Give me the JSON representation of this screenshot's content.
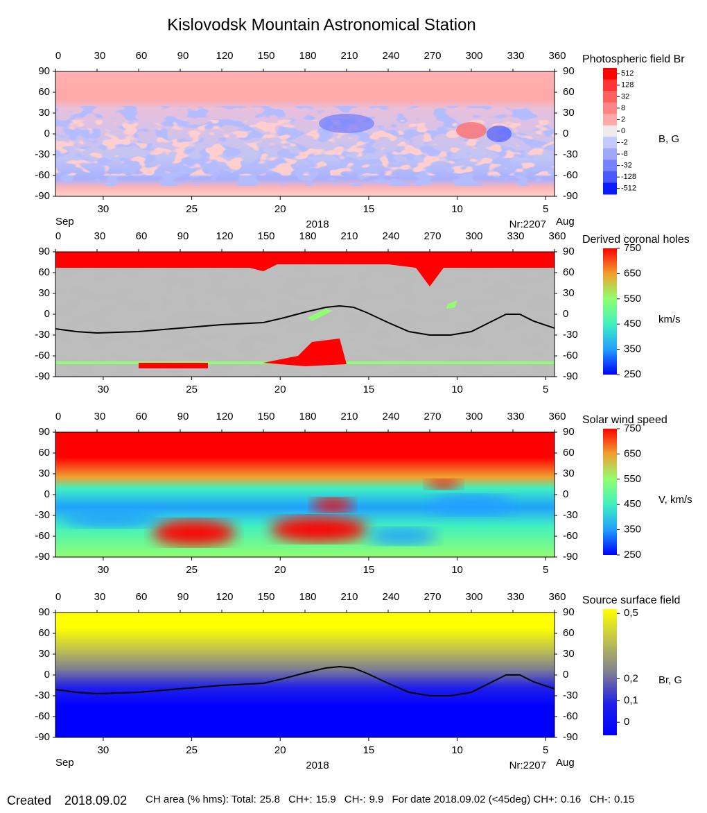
{
  "title": "Kislovodsk Mountain Astronomical Station",
  "chart_data": [
    {
      "type": "heatmap",
      "title": "Photospheric field Br",
      "unit_label": "B, G",
      "xlim": [
        0,
        360
      ],
      "xticks": [
        0,
        30,
        60,
        90,
        120,
        150,
        180,
        210,
        240,
        270,
        300,
        330,
        360
      ],
      "ylim": [
        -90,
        90
      ],
      "yticks": [
        90,
        60,
        30,
        0,
        -30,
        -60,
        -90
      ],
      "date_lim": [
        32.7,
        4.5
      ],
      "date_ticks": [
        30,
        25,
        20,
        15,
        10,
        5
      ],
      "month_left": "Sep",
      "month_right": "Aug",
      "year": "2018",
      "rotation": "Nr:2207",
      "colorbar": {
        "levels": [
          512,
          128,
          32,
          8,
          2,
          0,
          -2,
          -8,
          -32,
          -128,
          -512
        ],
        "colors": [
          "#ff0000",
          "#ff3535",
          "#ff6060",
          "#ff8585",
          "#ffaaaa",
          "#ececec",
          "#c4caff",
          "#9ea8ff",
          "#7682ff",
          "#4a58ff",
          "#0a1cff"
        ]
      }
    },
    {
      "type": "heatmap",
      "title": "Derived coronal holes",
      "unit_label": "km/s",
      "xlim": [
        0,
        360
      ],
      "xticks": [
        0,
        30,
        60,
        90,
        120,
        150,
        180,
        210,
        240,
        270,
        300,
        330,
        360
      ],
      "ylim": [
        -90,
        90
      ],
      "yticks": [
        90,
        60,
        30,
        0,
        -30,
        -60,
        -90
      ],
      "date_lim": [
        32.7,
        4.5
      ],
      "date_ticks": [
        30,
        25,
        20,
        15,
        10,
        5
      ],
      "neutral_line": {
        "lon": [
          0,
          15,
          30,
          60,
          90,
          120,
          150,
          165,
          180,
          195,
          205,
          215,
          225,
          240,
          255,
          270,
          285,
          300,
          315,
          325,
          335,
          345,
          360
        ],
        "lat": [
          -21,
          -25,
          -27,
          -25,
          -20,
          -15,
          -12,
          -5,
          3,
          10,
          12,
          10,
          2,
          -12,
          -25,
          -30,
          -30,
          -25,
          -10,
          0,
          0,
          -10,
          -20
        ]
      },
      "colorbar": {
        "clim": [
          250,
          750
        ],
        "ticks": [
          750,
          650,
          550,
          450,
          350,
          250
        ],
        "colormap": [
          "#0000ff",
          "#20a0ff",
          "#40f0c0",
          "#90ff70",
          "#f0a030",
          "#ff0000"
        ]
      }
    },
    {
      "type": "heatmap",
      "title": "Solar wind speed",
      "unit_label": "V, km/s",
      "xlim": [
        0,
        360
      ],
      "xticks": [
        0,
        30,
        60,
        90,
        120,
        150,
        180,
        210,
        240,
        270,
        300,
        330,
        360
      ],
      "ylim": [
        -90,
        90
      ],
      "yticks": [
        90,
        60,
        30,
        0,
        -30,
        -60,
        -90
      ],
      "date_lim": [
        32.7,
        4.5
      ],
      "date_ticks": [
        30,
        25,
        20,
        15,
        10,
        5
      ],
      "colorbar": {
        "clim": [
          250,
          750
        ],
        "ticks": [
          750,
          650,
          550,
          450,
          350,
          250
        ],
        "colormap": [
          "#0000ff",
          "#20a0ff",
          "#40f0c0",
          "#90ff70",
          "#f0a030",
          "#ff0000"
        ]
      }
    },
    {
      "type": "heatmap",
      "title": "Source surface field",
      "unit_label": "Br, G",
      "xlim": [
        0,
        360
      ],
      "xticks": [
        0,
        30,
        60,
        90,
        120,
        150,
        180,
        210,
        240,
        270,
        300,
        330,
        360
      ],
      "ylim": [
        -90,
        90
      ],
      "yticks": [
        90,
        60,
        30,
        0,
        -30,
        -60,
        -90
      ],
      "date_lim": [
        32.7,
        4.5
      ],
      "date_ticks": [
        30,
        25,
        20,
        15,
        10,
        5
      ],
      "month_left": "Sep",
      "month_right": "Aug",
      "year": "2018",
      "rotation": "Nr:2207",
      "neutral_line": {
        "lon": [
          0,
          15,
          30,
          60,
          90,
          120,
          150,
          165,
          180,
          195,
          205,
          215,
          225,
          240,
          255,
          270,
          285,
          300,
          315,
          325,
          335,
          345,
          360
        ],
        "lat": [
          -21,
          -25,
          -27,
          -25,
          -20,
          -15,
          -12,
          -5,
          3,
          10,
          12,
          10,
          2,
          -12,
          -25,
          -30,
          -30,
          -25,
          -10,
          0,
          0,
          -10,
          -20
        ]
      },
      "colorbar": {
        "clim": [
          -0.06,
          0.52
        ],
        "ticks": [
          {
            "value": 0.5,
            "label": "0,5"
          },
          {
            "value": 0.2,
            "label": "0,2"
          },
          {
            "value": 0.1,
            "label": "0,1"
          },
          0
        ],
        "colormap": [
          "#0000ff",
          "#2020e8",
          "#808090",
          "#c0c050",
          "#ffff00"
        ]
      }
    }
  ],
  "footer": {
    "created": "Created",
    "date": "2018.09.02",
    "stats": [
      {
        "label": "CH area (% hms): Total:",
        "value": 25.8
      },
      {
        "label": "CH+:",
        "value": 15.9
      },
      {
        "label": "CH-:",
        "value": 9.9
      },
      {
        "label": "For date 2018.09.02 (<45deg) CH+:",
        "value": 0.16
      },
      {
        "label": "CH-:",
        "value": 0.15
      }
    ]
  }
}
